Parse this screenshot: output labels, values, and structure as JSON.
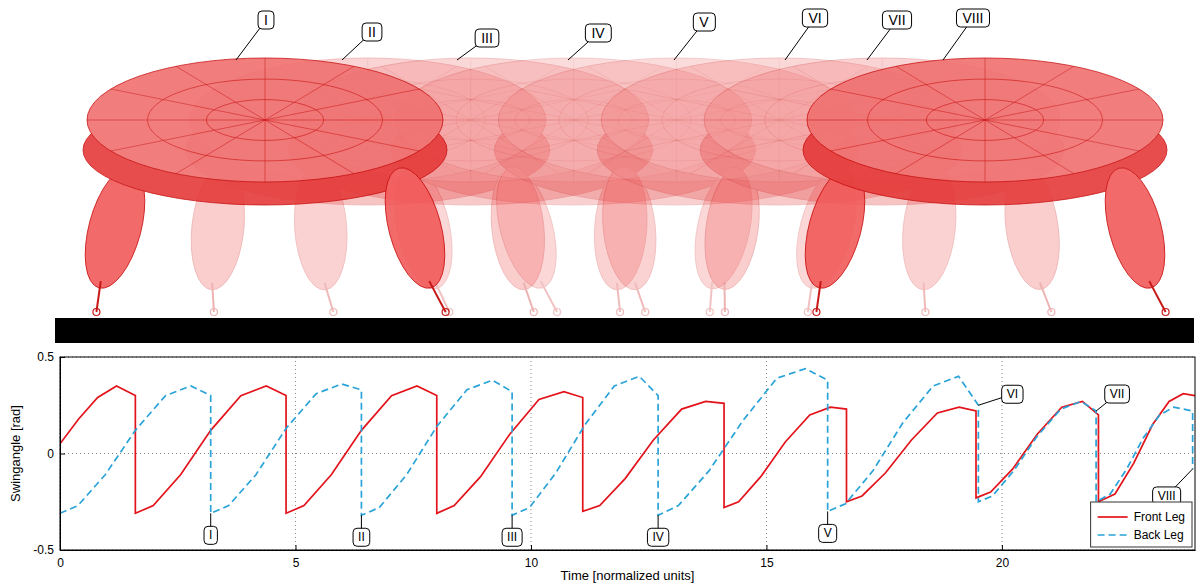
{
  "chart_data": {
    "type": "line",
    "xlabel": "Time [normalized units]",
    "ylabel": "Swingangle [rad]",
    "xlim": [
      0,
      24.1
    ],
    "ylim": [
      -0.5,
      0.5
    ],
    "xticks": [
      0,
      5,
      10,
      15,
      20
    ],
    "yticks": [
      -0.5,
      0,
      0.5
    ],
    "grid": true,
    "legend": "lower right",
    "series": [
      {
        "name": "Front Leg",
        "color": "#e3131b",
        "line_style": "solid",
        "x": [
          0,
          0.4,
          0.8,
          1.2,
          1.6,
          1.6,
          1.98,
          2.56,
          3.2,
          3.84,
          4.38,
          4.8,
          4.8,
          5.18,
          5.76,
          6.4,
          7.04,
          7.58,
          8.0,
          8.0,
          8.37,
          8.93,
          9.55,
          10.17,
          10.7,
          11.1,
          11.1,
          11.46,
          12.0,
          12.6,
          13.2,
          13.71,
          14.1,
          14.1,
          14.41,
          14.88,
          15.4,
          15.92,
          16.36,
          16.7,
          16.7,
          17.03,
          17.53,
          18.08,
          18.63,
          19.09,
          19.45,
          19.45,
          19.76,
          20.23,
          20.75,
          21.27,
          21.71,
          22.05,
          22.05,
          22.4,
          22.8,
          23.2,
          23.55,
          23.85,
          24.1
        ],
        "values": [
          0.05,
          0.18,
          0.29,
          0.35,
          0.3,
          -0.31,
          -0.27,
          -0.11,
          0.12,
          0.3,
          0.35,
          0.3,
          -0.31,
          -0.27,
          -0.11,
          0.12,
          0.3,
          0.35,
          0.3,
          -0.31,
          -0.27,
          -0.12,
          0.1,
          0.28,
          0.32,
          0.29,
          -0.3,
          -0.27,
          -0.13,
          0.07,
          0.23,
          0.27,
          0.26,
          -0.28,
          -0.25,
          -0.12,
          0.06,
          0.2,
          0.24,
          0.23,
          -0.25,
          -0.22,
          -0.1,
          0.07,
          0.21,
          0.24,
          0.22,
          -0.23,
          -0.2,
          -0.08,
          0.1,
          0.24,
          0.27,
          0.2,
          -0.25,
          -0.21,
          -0.05,
          0.15,
          0.27,
          0.31,
          0.3
        ]
      },
      {
        "name": "Back Leg",
        "color": "#2aa3d8",
        "line_style": "dashed",
        "x": [
          0,
          0.38,
          0.96,
          1.6,
          2.24,
          2.78,
          3.2,
          3.2,
          3.58,
          4.16,
          4.8,
          5.44,
          5.98,
          6.4,
          6.4,
          6.78,
          7.36,
          8.0,
          8.64,
          9.18,
          9.6,
          9.6,
          9.97,
          10.53,
          11.15,
          11.77,
          12.3,
          12.7,
          12.7,
          13.13,
          13.78,
          14.5,
          15.22,
          15.83,
          16.3,
          16.3,
          16.68,
          17.26,
          17.9,
          18.54,
          19.08,
          19.5,
          19.5,
          19.8,
          20.25,
          20.75,
          21.25,
          21.68,
          22.0,
          22.0,
          22.3,
          22.65,
          23.0,
          23.35,
          23.65,
          24.05,
          24.05
        ],
        "values": [
          -0.31,
          -0.27,
          -0.11,
          0.12,
          0.3,
          0.35,
          0.3,
          -0.31,
          -0.27,
          -0.11,
          0.13,
          0.31,
          0.36,
          0.33,
          -0.32,
          -0.28,
          -0.11,
          0.14,
          0.33,
          0.38,
          0.32,
          -0.32,
          -0.28,
          -0.1,
          0.15,
          0.35,
          0.4,
          0.3,
          -0.32,
          -0.27,
          -0.09,
          0.17,
          0.39,
          0.44,
          0.38,
          -0.3,
          -0.26,
          -0.09,
          0.16,
          0.35,
          0.4,
          0.25,
          -0.25,
          -0.22,
          -0.09,
          0.09,
          0.23,
          0.27,
          0.22,
          -0.25,
          -0.21,
          -0.08,
          0.08,
          0.2,
          0.24,
          0.22,
          -0.08
        ]
      }
    ],
    "annotations": [
      {
        "text": "I",
        "x": 3.2,
        "y": -0.31
      },
      {
        "text": "II",
        "x": 6.4,
        "y": -0.32
      },
      {
        "text": "III",
        "x": 9.6,
        "y": -0.32
      },
      {
        "text": "IV",
        "x": 12.7,
        "y": -0.32
      },
      {
        "text": "V",
        "x": 16.3,
        "y": -0.3
      },
      {
        "text": "VI",
        "x": 19.5,
        "y": 0.25
      },
      {
        "text": "VII",
        "x": 22.0,
        "y": 0.22
      },
      {
        "text": "VIII",
        "x": 24.05,
        "y": -0.08
      }
    ]
  },
  "illustration": {
    "labels": [
      "I",
      "II",
      "III",
      "IV",
      "V",
      "VI",
      "VII",
      "VIII"
    ]
  }
}
